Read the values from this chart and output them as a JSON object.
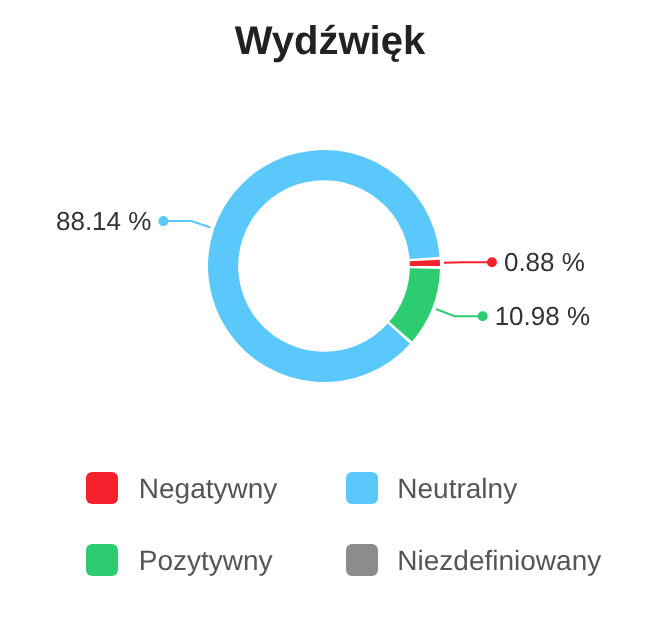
{
  "chart_data": {
    "type": "donut",
    "title": "Wydźwięk",
    "categories": [
      "Negatywny",
      "Neutralny",
      "Pozytywny",
      "Niezdefiniowany"
    ],
    "values": [
      0.88,
      88.14,
      10.98,
      0
    ],
    "value_labels": [
      "0.88 %",
      "88.14 %",
      "10.98 %",
      null
    ],
    "colors": [
      "#f5222d",
      "#5ac8fa",
      "#2ecc71",
      "#8c8c8c"
    ],
    "legend": "bottom"
  }
}
